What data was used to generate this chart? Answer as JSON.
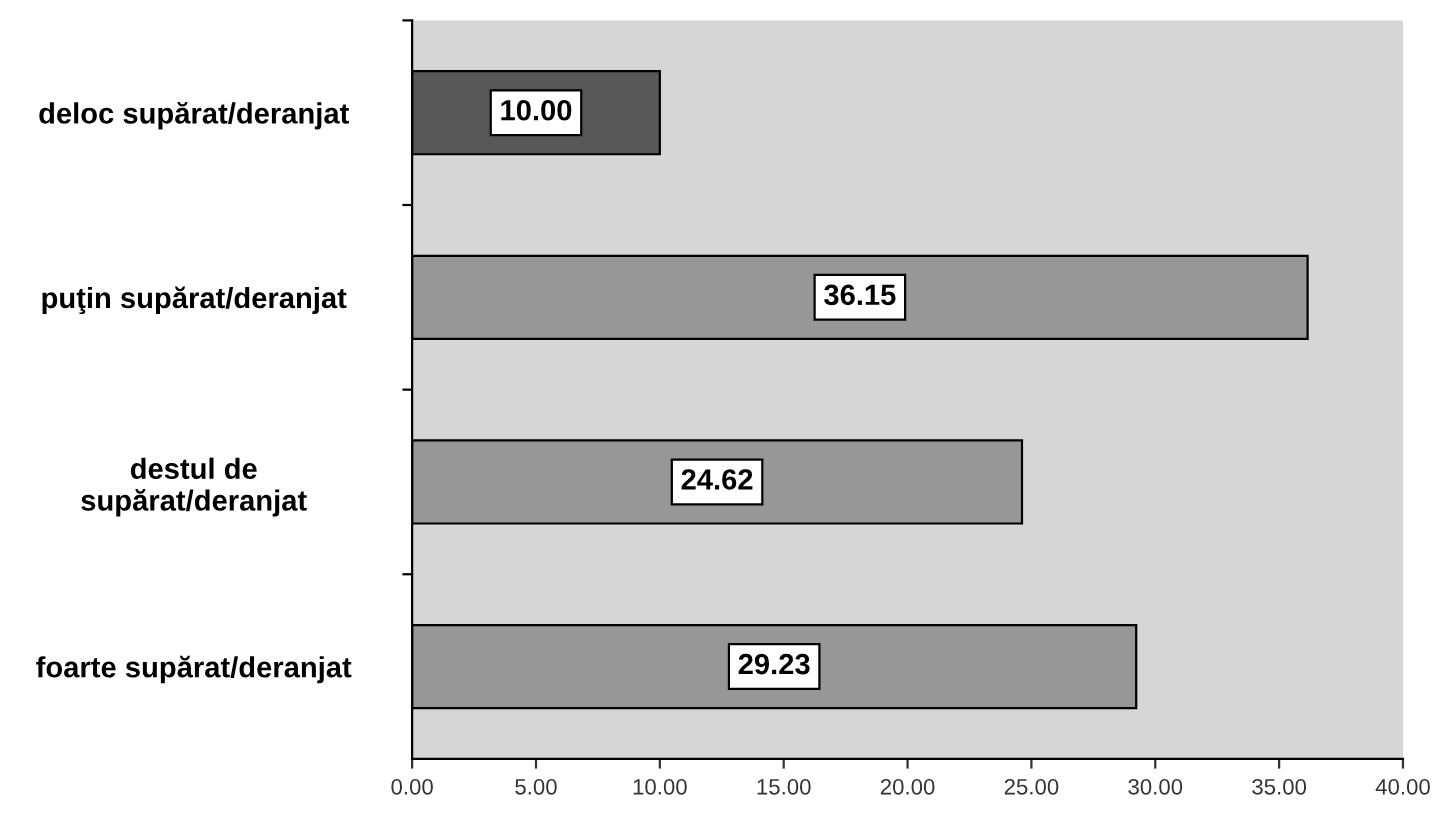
{
  "chart_data": {
    "type": "bar",
    "orientation": "horizontal",
    "categories": [
      "deloc supărat/deranjat",
      "puţin supărat/deranjat",
      "destul de\nsupărat/deranjat",
      "foarte supărat/deranjat"
    ],
    "values": [
      10.0,
      36.15,
      24.62,
      29.23
    ],
    "colors": [
      "#575757",
      "#979797",
      "#979797",
      "#979797"
    ],
    "value_labels": [
      "10.00",
      "36.15",
      "24.62",
      "29.23"
    ],
    "xlim": [
      0,
      40
    ],
    "xticks": [
      {
        "value": 0,
        "label": "0.00"
      },
      {
        "value": 5,
        "label": "5.00"
      },
      {
        "value": 10,
        "label": "10.00"
      },
      {
        "value": 15,
        "label": "15.00"
      },
      {
        "value": 20,
        "label": "20.00"
      },
      {
        "value": 25,
        "label": "25.00"
      },
      {
        "value": 30,
        "label": "30.00"
      },
      {
        "value": 35,
        "label": "35.00"
      },
      {
        "value": 40,
        "label": "40.00"
      }
    ],
    "grid": false,
    "legend": false
  }
}
